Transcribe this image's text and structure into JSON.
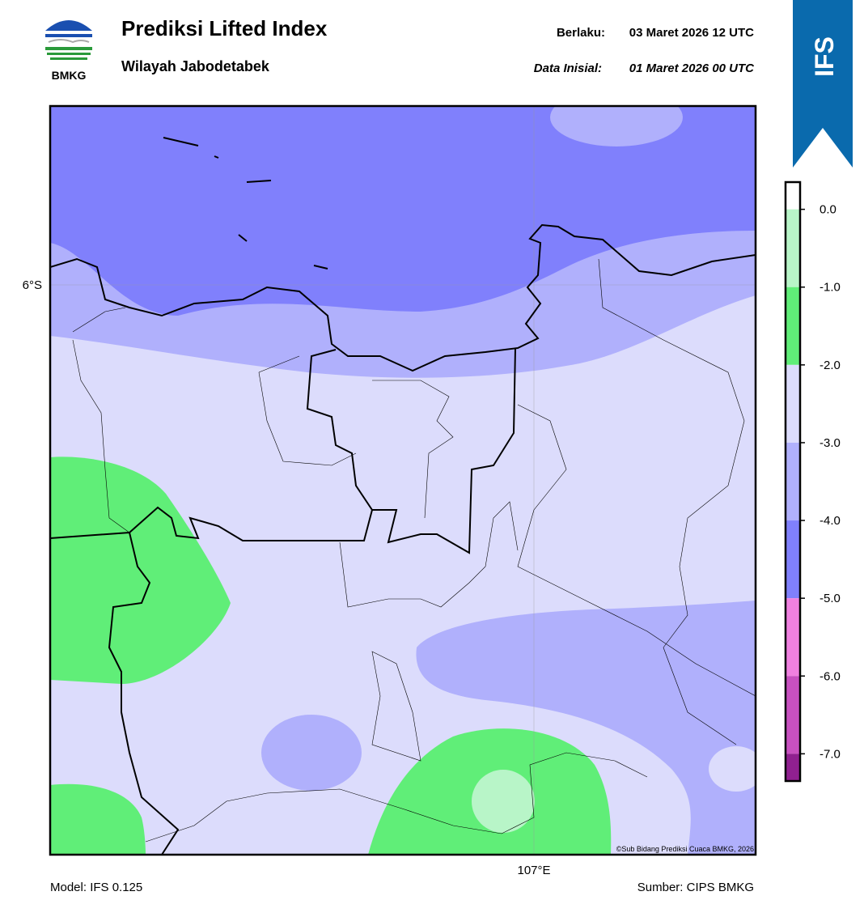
{
  "header": {
    "title": "Prediksi Lifted Index",
    "subtitle": "Wilayah Jabodetabek",
    "valid_label": "Berlaku:",
    "valid_time": "03 Maret 2026 12 UTC",
    "init_label": "Data Inisial:",
    "init_time": "01 Maret 2026 00 UTC",
    "logo_text": "BMKG",
    "badge": "IFS"
  },
  "map": {
    "lat_label": "6°S",
    "lon_label": "107°E",
    "credit": "©Sub Bidang Prediksi Cuaca BMKG, 2026"
  },
  "colorbar": {
    "lim": [
      -7.35,
      0.35
    ],
    "ticks": [
      {
        "value": 0,
        "label": "0.0"
      },
      {
        "value": -1,
        "label": "-1.0"
      },
      {
        "value": -2,
        "label": "-2.0"
      },
      {
        "value": -3,
        "label": "-3.0"
      },
      {
        "value": -4,
        "label": "-4.0"
      },
      {
        "value": -5,
        "label": "-5.0"
      },
      {
        "value": -6,
        "label": "-6.0"
      },
      {
        "value": -7,
        "label": "-7.0"
      }
    ],
    "colors": [
      "#ffffff",
      "#b8f5c8",
      "#60ee78",
      "#dcdcfc",
      "#b0b0fc",
      "#8080fc",
      "#f080e0",
      "#c850c0",
      "#902090"
    ]
  },
  "footer": {
    "model": "Model: IFS 0.125",
    "source": "Sumber: CIPS BMKG"
  }
}
